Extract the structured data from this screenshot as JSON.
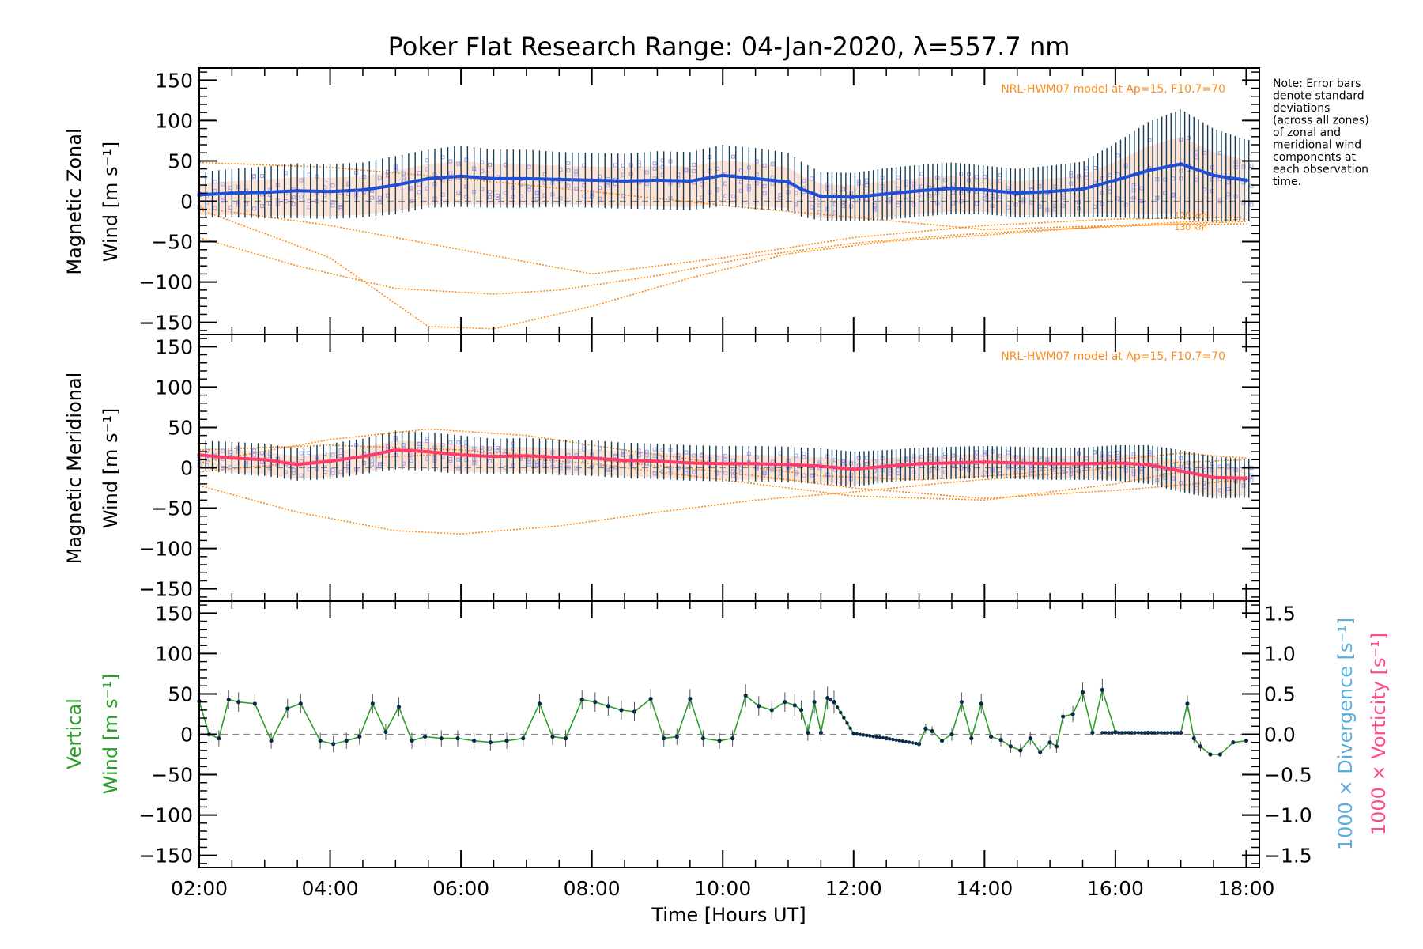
{
  "title": "Poker Flat Research Range: 04-Jan-2020, λ=557.7 nm",
  "note_lines": [
    "Note: Error bars",
    "denote standard",
    "deviations",
    "(across all zones)",
    "of zonal and",
    "meridional wind",
    "components at",
    "each observation",
    "time."
  ],
  "model_label": "NRL-HWM07 model at Ap=15, F10.7=70",
  "altitude_labels": [
    "120 km",
    "130 km"
  ],
  "colors": {
    "zonal": "#1f4fd6",
    "meridional": "#ff3b6b",
    "vertical": "#2aa02a",
    "vertical_points": "#0b2a4a",
    "error_bars": "#123b55",
    "zone_points": "#a8a2e0",
    "model_lines": "#ff8c1a",
    "model_fill": "#ffb38a",
    "divergence_axis": "#59aee0",
    "vorticity_axis": "#ff4d80"
  },
  "chart_data": [
    {
      "type": "line",
      "name": "zonal",
      "ylabel_line1": "Magnetic Zonal",
      "ylabel_line2": "Wind [m s⁻¹]",
      "ylim": [
        -165,
        165
      ],
      "yticks": [
        -150,
        -100,
        -50,
        0,
        50,
        100,
        150
      ],
      "xlim": [
        2,
        18.2
      ],
      "series": [
        {
          "x": [
            2.0,
            2.5,
            3.0,
            3.5,
            4.0,
            4.5,
            5.0,
            5.5,
            6.0,
            6.5,
            7.0,
            7.5,
            8.0,
            8.5,
            9.0,
            9.5,
            10.0,
            10.5,
            11.0,
            11.2,
            11.5,
            12.0,
            12.5,
            13.0,
            13.5,
            14.0,
            14.5,
            15.0,
            15.5,
            16.0,
            16.5,
            17.0,
            17.5,
            18.0
          ],
          "y": [
            8,
            10,
            11,
            13,
            12,
            14,
            20,
            28,
            31,
            28,
            28,
            27,
            26,
            25,
            26,
            25,
            32,
            28,
            24,
            15,
            6,
            5,
            9,
            13,
            16,
            14,
            10,
            12,
            15,
            26,
            38,
            46,
            32,
            26
          ],
          "err": [
            28,
            30,
            32,
            34,
            34,
            34,
            36,
            36,
            38,
            36,
            36,
            34,
            34,
            34,
            36,
            36,
            38,
            38,
            36,
            34,
            30,
            30,
            32,
            32,
            32,
            30,
            30,
            32,
            34,
            46,
            60,
            68,
            58,
            50
          ]
        }
      ],
      "model_curves": [
        {
          "x": [
            2,
            4,
            6,
            8,
            10,
            12,
            14,
            16,
            18
          ],
          "y": [
            -8,
            -30,
            -60,
            -90,
            -70,
            -45,
            -30,
            -22,
            -20
          ]
        },
        {
          "x": [
            2,
            3.5,
            5,
            6.5,
            7.5,
            9,
            10.5,
            12,
            13.5,
            15,
            17,
            18
          ],
          "y": [
            -45,
            -80,
            -108,
            -115,
            -110,
            -92,
            -68,
            -52,
            -42,
            -35,
            -28,
            -25
          ]
        },
        {
          "x": [
            2,
            4,
            5.5,
            6.5,
            8,
            9.5,
            11,
            12.5,
            14,
            16,
            18
          ],
          "y": [
            -10,
            -70,
            -155,
            -158,
            -130,
            -95,
            -65,
            -50,
            -42,
            -30,
            -22
          ]
        },
        {
          "x": [
            2,
            4,
            6,
            8,
            10,
            12,
            14,
            16,
            18
          ],
          "y": [
            48,
            42,
            28,
            12,
            -5,
            -20,
            -35,
            -30,
            -28
          ]
        }
      ]
    },
    {
      "type": "line",
      "name": "meridional",
      "ylabel_line1": "Magnetic Meridional",
      "ylabel_line2": "Wind [m s⁻¹]",
      "ylim": [
        -165,
        165
      ],
      "yticks": [
        -150,
        -100,
        -50,
        0,
        50,
        100,
        150
      ],
      "xlim": [
        2,
        18.2
      ],
      "series": [
        {
          "x": [
            2.0,
            2.5,
            3.0,
            3.5,
            4.0,
            4.5,
            5.0,
            5.5,
            6.0,
            6.5,
            7.0,
            7.5,
            8.0,
            8.5,
            9.0,
            9.5,
            10.0,
            10.5,
            11.0,
            11.5,
            12.0,
            12.5,
            13.0,
            13.5,
            14.0,
            14.5,
            15.0,
            15.5,
            16.0,
            16.5,
            17.0,
            17.5,
            18.0
          ],
          "y": [
            16,
            12,
            10,
            4,
            8,
            14,
            22,
            20,
            16,
            14,
            15,
            13,
            12,
            9,
            8,
            6,
            5,
            5,
            4,
            2,
            -2,
            2,
            5,
            6,
            7,
            6,
            5,
            5,
            6,
            4,
            -4,
            -12,
            -13
          ],
          "err": [
            18,
            20,
            20,
            20,
            22,
            22,
            24,
            24,
            24,
            22,
            22,
            22,
            22,
            22,
            22,
            22,
            22,
            22,
            22,
            22,
            22,
            20,
            20,
            20,
            20,
            20,
            20,
            20,
            22,
            24,
            26,
            26,
            24
          ]
        }
      ],
      "model_curves": [
        {
          "x": [
            2,
            3.5,
            5,
            6,
            7.5,
            9,
            10.5,
            12,
            13.5,
            15,
            16.5,
            18
          ],
          "y": [
            -22,
            -55,
            -78,
            -82,
            -72,
            -55,
            -40,
            -30,
            -18,
            -8,
            5,
            10
          ]
        },
        {
          "x": [
            2,
            4,
            5.5,
            7,
            8.5,
            10,
            11.5,
            13,
            14.5,
            16,
            17,
            18
          ],
          "y": [
            6,
            35,
            48,
            40,
            22,
            5,
            -10,
            -15,
            -8,
            10,
            18,
            12
          ]
        },
        {
          "x": [
            2,
            4,
            6,
            8,
            10,
            12,
            14,
            16,
            17,
            18
          ],
          "y": [
            -5,
            10,
            18,
            5,
            -15,
            -35,
            -40,
            -20,
            -5,
            -20
          ]
        },
        {
          "x": [
            2,
            4,
            6,
            8,
            10,
            12,
            14,
            16,
            18
          ],
          "y": [
            22,
            28,
            22,
            10,
            -5,
            -25,
            -38,
            -28,
            -15
          ]
        }
      ]
    },
    {
      "type": "line",
      "name": "vertical",
      "ylabel_line1": "Vertical",
      "ylabel_line2": "Wind [m s⁻¹]",
      "ylim": [
        -165,
        165
      ],
      "yticks": [
        -150,
        -100,
        -50,
        0,
        50,
        100,
        150
      ],
      "xlim": [
        2,
        18.2
      ],
      "right_axis": {
        "ylim": [
          -1.65,
          1.65
        ],
        "yticks": [
          -1.5,
          -1.0,
          -0.5,
          0.0,
          0.5,
          1.0,
          1.5
        ],
        "label_divergence": "1000 × Divergence [s⁻¹]",
        "label_vorticity": "1000 × Vorticity [s⁻¹]"
      },
      "series": [
        {
          "x": [
            2.0,
            2.15,
            2.3,
            2.45,
            2.6,
            2.85,
            3.1,
            3.35,
            3.55,
            3.85,
            4.05,
            4.25,
            4.45,
            4.65,
            4.85,
            5.05,
            5.25,
            5.45,
            5.7,
            5.95,
            6.2,
            6.45,
            6.7,
            6.95,
            7.2,
            7.4,
            7.6,
            7.85,
            8.05,
            8.25,
            8.45,
            8.65,
            8.9,
            9.1,
            9.3,
            9.5,
            9.7,
            9.95,
            10.15,
            10.35,
            10.55,
            10.75,
            10.95,
            11.1,
            11.2,
            11.3,
            11.4,
            11.5,
            11.6,
            11.7,
            12.0,
            12.5,
            13.0,
            13.1,
            13.2,
            13.35,
            13.5,
            13.65,
            13.8,
            13.95,
            14.1,
            14.25,
            14.4,
            14.55,
            14.7,
            14.85,
            15.0,
            15.1,
            15.2,
            15.35,
            15.5,
            15.65,
            15.8,
            16.0,
            16.5,
            17.0,
            17.1,
            17.2,
            17.3,
            17.45,
            17.6,
            17.8,
            18.0
          ],
          "y": [
            41,
            0,
            -5,
            43,
            40,
            38,
            -8,
            32,
            38,
            -8,
            -12,
            -8,
            -3,
            38,
            3,
            34,
            -8,
            -3,
            -5,
            -5,
            -8,
            -10,
            -8,
            -5,
            38,
            -3,
            -5,
            43,
            40,
            35,
            30,
            28,
            44,
            -5,
            -3,
            44,
            -5,
            -8,
            -5,
            48,
            35,
            30,
            40,
            36,
            30,
            2,
            40,
            2,
            45,
            40,
            1,
            -5,
            -12,
            7,
            4,
            -8,
            0,
            40,
            -5,
            38,
            -3,
            -7,
            -15,
            -20,
            -5,
            -22,
            -10,
            -15,
            22,
            25,
            52,
            2,
            55,
            3,
            2,
            2,
            38,
            -5,
            -15,
            -25,
            -25,
            -10,
            -8
          ],
          "err": [
            12,
            10,
            10,
            12,
            12,
            12,
            10,
            12,
            12,
            10,
            10,
            10,
            10,
            12,
            10,
            12,
            10,
            10,
            10,
            10,
            10,
            10,
            10,
            10,
            12,
            10,
            10,
            12,
            12,
            12,
            12,
            12,
            12,
            10,
            10,
            12,
            10,
            10,
            10,
            14,
            12,
            12,
            12,
            14,
            12,
            10,
            14,
            10,
            14,
            14,
            2,
            2,
            2,
            6,
            6,
            8,
            8,
            12,
            8,
            12,
            8,
            8,
            8,
            8,
            8,
            8,
            8,
            8,
            10,
            10,
            12,
            4,
            14,
            2,
            2,
            2,
            10,
            6,
            6,
            2,
            2,
            2,
            2
          ]
        }
      ]
    }
  ],
  "xaxis": {
    "label": "Time [Hours UT]",
    "ticks": [
      2,
      4,
      6,
      8,
      10,
      12,
      14,
      16,
      18
    ],
    "tick_labels": [
      "02:00",
      "04:00",
      "06:00",
      "08:00",
      "10:00",
      "12:00",
      "14:00",
      "16:00",
      "18:00"
    ]
  }
}
